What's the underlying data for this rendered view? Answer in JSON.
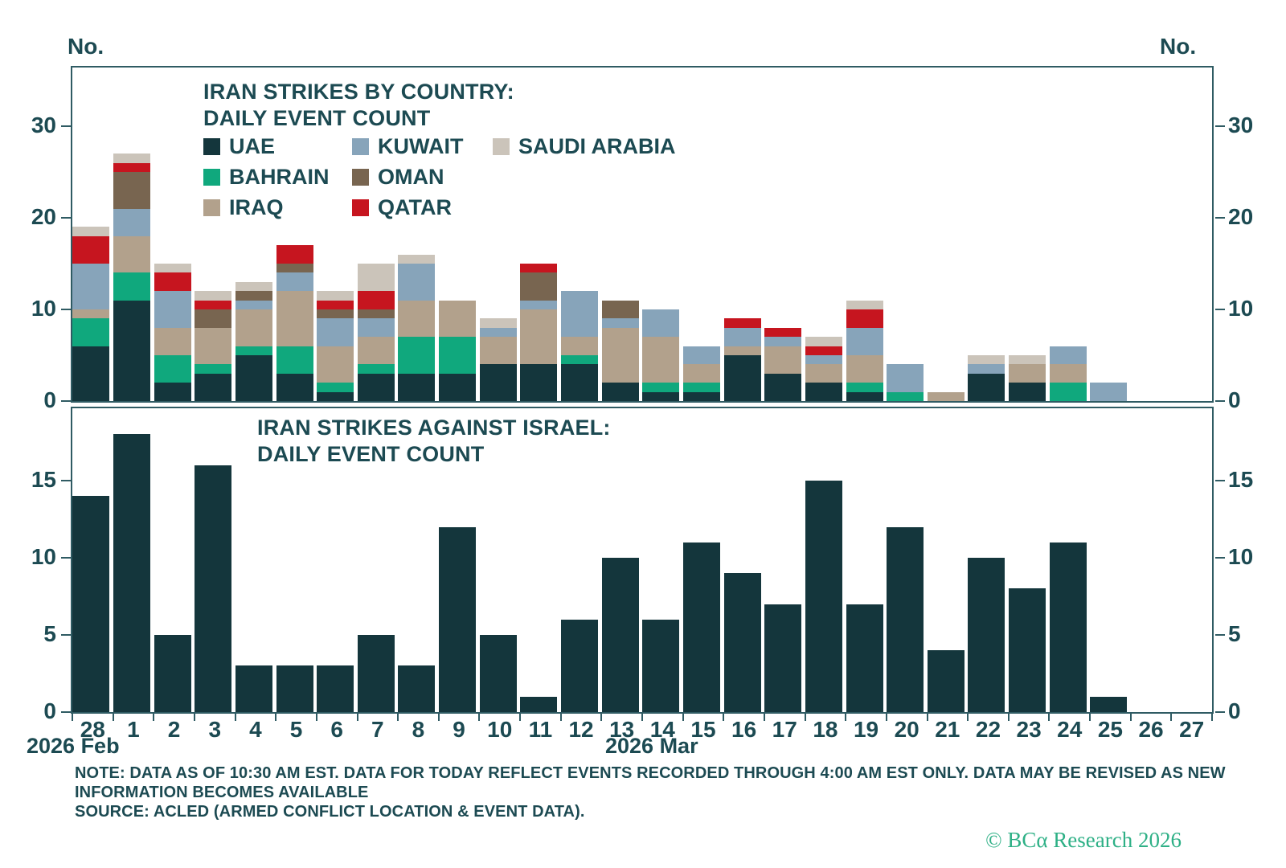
{
  "header": {
    "unit_label_left": "No.",
    "unit_label_right": "No."
  },
  "top_panel": {
    "title_line1": "IRAN STRIKES BY COUNTRY:",
    "title_line2": "DAILY EVENT COUNT",
    "legend_grid": [
      "UAE",
      "KUWAIT",
      "SAUDI ARABIA",
      "BAHRAIN",
      "OMAN",
      null,
      "IRAQ",
      "QATAR",
      null
    ],
    "y_ticks": [
      0,
      10,
      20,
      30
    ]
  },
  "bottom_panel": {
    "title_line1": "IRAN STRIKES AGAINST ISRAEL:",
    "title_line2": "DAILY EVENT COUNT",
    "y_ticks": [
      0,
      5,
      10,
      15
    ]
  },
  "x_axis": {
    "day_labels": [
      "28",
      "1",
      "2",
      "3",
      "4",
      "5",
      "6",
      "7",
      "8",
      "9",
      "10",
      "11",
      "12",
      "13",
      "14",
      "15",
      "16",
      "17",
      "18",
      "19",
      "20",
      "21",
      "22",
      "23",
      "24",
      "25",
      "26",
      "27"
    ],
    "month_label_feb": "2026 Feb",
    "month_label_mar": "2026 Mar"
  },
  "footer": {
    "note_line1": "NOTE: DATA AS OF 10:30 AM EST. DATA FOR TODAY REFLECT EVENTS RECORDED THROUGH 4:00 AM EST ONLY. DATA MAY BE REVISED AS NEW",
    "note_line2": "INFORMATION BECOMES AVAILABLE",
    "source": "SOURCE: ACLED (ARMED CONFLICT LOCATION & EVENT DATA).",
    "copyright": "© BCα Research 2026"
  },
  "colors": {
    "text": "#1c4a52",
    "axis": "#2f5b63",
    "copyright_green": "#2eb086",
    "uae": "#14363c",
    "bahrain": "#10a87d",
    "iraq": "#b2a18c",
    "kuwait": "#87a4ba",
    "oman": "#786550",
    "qatar": "#c6151f",
    "saudi_arabia": "#cbc4ba"
  },
  "chart_data": [
    {
      "type": "bar",
      "stacked": true,
      "title": "IRAN STRIKES BY COUNTRY: DAILY EVENT COUNT",
      "xlabel": "",
      "ylabel": "No.",
      "grid": false,
      "legend_position": "inside-top-left",
      "ylim": [
        0,
        36.5
      ],
      "y_ticks": [
        0,
        10,
        20,
        30
      ],
      "categories": [
        "Feb 28",
        "Mar 1",
        "Mar 2",
        "Mar 3",
        "Mar 4",
        "Mar 5",
        "Mar 6",
        "Mar 7",
        "Mar 8",
        "Mar 9",
        "Mar 10",
        "Mar 11",
        "Mar 12",
        "Mar 13",
        "Mar 14",
        "Mar 15",
        "Mar 16",
        "Mar 17",
        "Mar 18",
        "Mar 19",
        "Mar 20",
        "Mar 21",
        "Mar 22",
        "Mar 23",
        "Mar 24",
        "Mar 25",
        "Mar 26",
        "Mar 27"
      ],
      "series": [
        {
          "name": "UAE",
          "color": "#14363c",
          "values": [
            6,
            11,
            2,
            3,
            5,
            3,
            1,
            3,
            3,
            3,
            4,
            4,
            4,
            2,
            1,
            1,
            5,
            3,
            2,
            1,
            0,
            0,
            3,
            2,
            0,
            0,
            0,
            0
          ]
        },
        {
          "name": "BAHRAIN",
          "color": "#10a87d",
          "values": [
            3,
            3,
            3,
            1,
            1,
            3,
            1,
            1,
            4,
            4,
            0,
            0,
            1,
            0,
            1,
            1,
            0,
            0,
            0,
            1,
            1,
            0,
            0,
            0,
            2,
            0,
            0,
            0
          ]
        },
        {
          "name": "IRAQ",
          "color": "#b2a18c",
          "values": [
            1,
            4,
            3,
            4,
            4,
            6,
            4,
            3,
            4,
            4,
            3,
            6,
            2,
            6,
            5,
            2,
            1,
            3,
            2,
            3,
            0,
            1,
            0,
            2,
            2,
            0,
            0,
            0
          ]
        },
        {
          "name": "KUWAIT",
          "color": "#87a4ba",
          "values": [
            5,
            3,
            4,
            0,
            1,
            2,
            3,
            2,
            4,
            0,
            1,
            1,
            5,
            1,
            3,
            2,
            2,
            1,
            1,
            3,
            3,
            0,
            1,
            0,
            2,
            2,
            0,
            0
          ]
        },
        {
          "name": "OMAN",
          "color": "#786550",
          "values": [
            0,
            4,
            0,
            2,
            1,
            1,
            1,
            1,
            0,
            0,
            0,
            3,
            0,
            2,
            0,
            0,
            0,
            0,
            0,
            0,
            0,
            0,
            0,
            0,
            0,
            0,
            0,
            0
          ]
        },
        {
          "name": "QATAR",
          "color": "#c6151f",
          "values": [
            3,
            1,
            2,
            1,
            0,
            2,
            1,
            2,
            0,
            0,
            0,
            1,
            0,
            0,
            0,
            0,
            1,
            1,
            1,
            2,
            0,
            0,
            0,
            0,
            0,
            0,
            0,
            0
          ]
        },
        {
          "name": "SAUDI ARABIA",
          "color": "#cbc4ba",
          "values": [
            1,
            1,
            1,
            1,
            1,
            0,
            1,
            3,
            1,
            0,
            1,
            0,
            0,
            0,
            0,
            0,
            0,
            0,
            1,
            1,
            0,
            0,
            1,
            1,
            0,
            0,
            0,
            0
          ]
        }
      ],
      "stack_totals": [
        19,
        27,
        15,
        12,
        13,
        17,
        12,
        15,
        16,
        11,
        9,
        15,
        12,
        11,
        10,
        6,
        9,
        8,
        7,
        11,
        4,
        1,
        5,
        5,
        6,
        2,
        0,
        0
      ]
    },
    {
      "type": "bar",
      "stacked": false,
      "title": "IRAN STRIKES AGAINST ISRAEL: DAILY EVENT COUNT",
      "xlabel": "",
      "ylabel": "No.",
      "grid": false,
      "ylim": [
        0,
        19.9
      ],
      "y_ticks": [
        0,
        5,
        10,
        15
      ],
      "categories": [
        "Feb 28",
        "Mar 1",
        "Mar 2",
        "Mar 3",
        "Mar 4",
        "Mar 5",
        "Mar 6",
        "Mar 7",
        "Mar 8",
        "Mar 9",
        "Mar 10",
        "Mar 11",
        "Mar 12",
        "Mar 13",
        "Mar 14",
        "Mar 15",
        "Mar 16",
        "Mar 17",
        "Mar 18",
        "Mar 19",
        "Mar 20",
        "Mar 21",
        "Mar 22",
        "Mar 23",
        "Mar 24",
        "Mar 25",
        "Mar 26",
        "Mar 27"
      ],
      "series": [
        {
          "name": "ISRAEL",
          "color": "#14363c",
          "values": [
            14,
            18,
            5,
            16,
            3,
            3,
            3,
            5,
            3,
            12,
            5,
            1,
            6,
            10,
            6,
            11,
            9,
            7,
            15,
            7,
            12,
            4,
            10,
            8,
            11,
            1,
            0,
            0
          ]
        }
      ]
    }
  ]
}
